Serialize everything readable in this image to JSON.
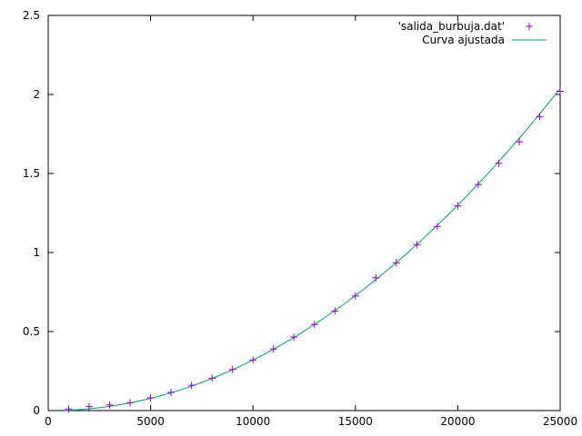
{
  "chart_data": {
    "type": "scatter",
    "title": "",
    "xlabel": "",
    "ylabel": "",
    "xlim": [
      0,
      25000
    ],
    "ylim": [
      0,
      2.5
    ],
    "x_ticks": [
      0,
      5000,
      10000,
      15000,
      20000,
      25000
    ],
    "x_tick_labels": [
      "0",
      "5000",
      "10000",
      "15000",
      "20000",
      "25000"
    ],
    "y_ticks": [
      0,
      0.5,
      1,
      1.5,
      2,
      2.5
    ],
    "y_tick_labels": [
      "0",
      "0.5",
      "1",
      "1.5",
      "2",
      "2.5"
    ],
    "grid": false,
    "legend_position": "top-right",
    "series": [
      {
        "name": "'salida_burbuja.dat'",
        "kind": "points",
        "marker": "plus",
        "color": "#9400d3",
        "x": [
          1000,
          2000,
          3000,
          4000,
          5000,
          6000,
          7000,
          8000,
          9000,
          10000,
          11000,
          12000,
          13000,
          14000,
          15000,
          16000,
          17000,
          18000,
          19000,
          20000,
          21000,
          22000,
          23000,
          24000,
          25000
        ],
        "y": [
          0.01,
          0.025,
          0.035,
          0.05,
          0.08,
          0.115,
          0.16,
          0.205,
          0.26,
          0.32,
          0.39,
          0.465,
          0.545,
          0.63,
          0.725,
          0.84,
          0.935,
          1.05,
          1.165,
          1.295,
          1.43,
          1.565,
          1.7,
          1.86,
          2.02
        ]
      },
      {
        "name": "Curva ajustada",
        "kind": "line",
        "color": "#009e73",
        "fit": {
          "a": 3.3e-09,
          "b": -1e-06,
          "c": 0.0
        }
      }
    ]
  }
}
